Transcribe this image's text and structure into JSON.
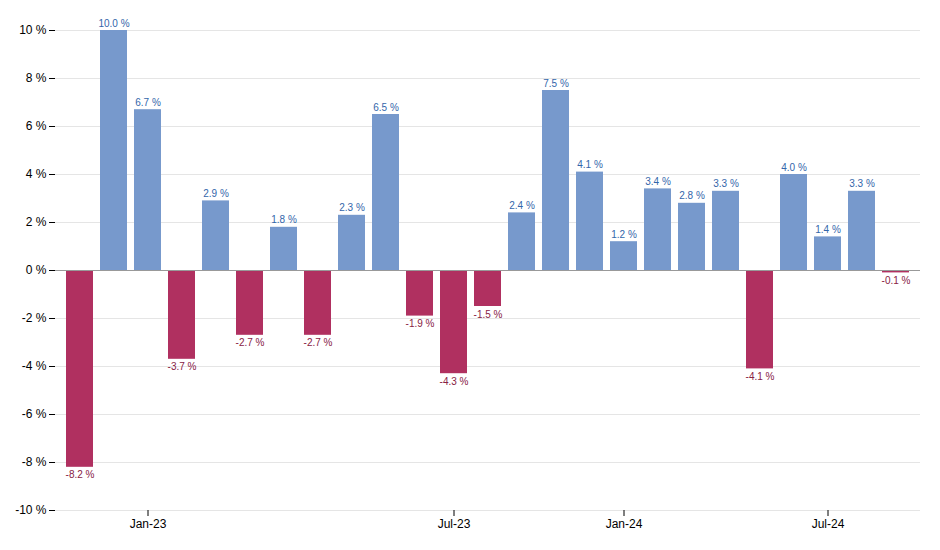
{
  "chart_data": {
    "type": "bar",
    "categories": [
      null,
      null,
      "Jan-23",
      null,
      null,
      null,
      null,
      null,
      null,
      null,
      null,
      "Jul-23",
      null,
      null,
      null,
      null,
      "Jan-24",
      null,
      null,
      null,
      null,
      null,
      "Jul-24",
      null,
      null
    ],
    "values": [
      -8.2,
      10.0,
      6.7,
      -3.7,
      2.9,
      -2.7,
      1.8,
      -2.7,
      2.3,
      6.5,
      -1.9,
      -4.3,
      -1.5,
      2.4,
      7.5,
      4.1,
      1.2,
      3.4,
      2.8,
      3.3,
      -4.1,
      4.0,
      1.4,
      3.3,
      -0.1
    ],
    "value_labels": [
      "-8.2 %",
      "10.0 %",
      "6.7 %",
      "-3.7 %",
      "2.9 %",
      "-2.7 %",
      "1.8 %",
      "-2.7 %",
      "2.3 %",
      "6.5 %",
      "-1.9 %",
      "-4.3 %",
      "-1.5 %",
      "2.4 %",
      "7.5 %",
      "4.1 %",
      "1.2 %",
      "3.4 %",
      "2.8 %",
      "3.3 %",
      "-4.1 %",
      "4.0 %",
      "1.4 %",
      "3.3 %",
      "-0.1 %"
    ],
    "colors": [
      "#b03060",
      "#7799cc",
      "#7799cc",
      "#b03060",
      "#7799cc",
      "#b03060",
      "#7799cc",
      "#b03060",
      "#7799cc",
      "#7799cc",
      "#b03060",
      "#b03060",
      "#b03060",
      "#7799cc",
      "#7799cc",
      "#7799cc",
      "#7799cc",
      "#7799cc",
      "#7799cc",
      "#7799cc",
      "#b03060",
      "#7799cc",
      "#7799cc",
      "#7799cc",
      "#b03060"
    ],
    "ylim": [
      -10,
      10
    ],
    "yticks": [
      {
        "value": -10,
        "label": "-10 %"
      },
      {
        "value": -8,
        "label": "-8 %"
      },
      {
        "value": -6,
        "label": "-6 %"
      },
      {
        "value": -4,
        "label": "-4 %"
      },
      {
        "value": -2,
        "label": "-2 %"
      },
      {
        "value": 0,
        "label": "0 %"
      },
      {
        "value": 2,
        "label": "2 %"
      },
      {
        "value": 4,
        "label": "4 %"
      },
      {
        "value": 6,
        "label": "6 %"
      },
      {
        "value": 8,
        "label": "8 %"
      },
      {
        "value": 10,
        "label": "10 %"
      }
    ],
    "grid": true,
    "data_labels": true
  }
}
